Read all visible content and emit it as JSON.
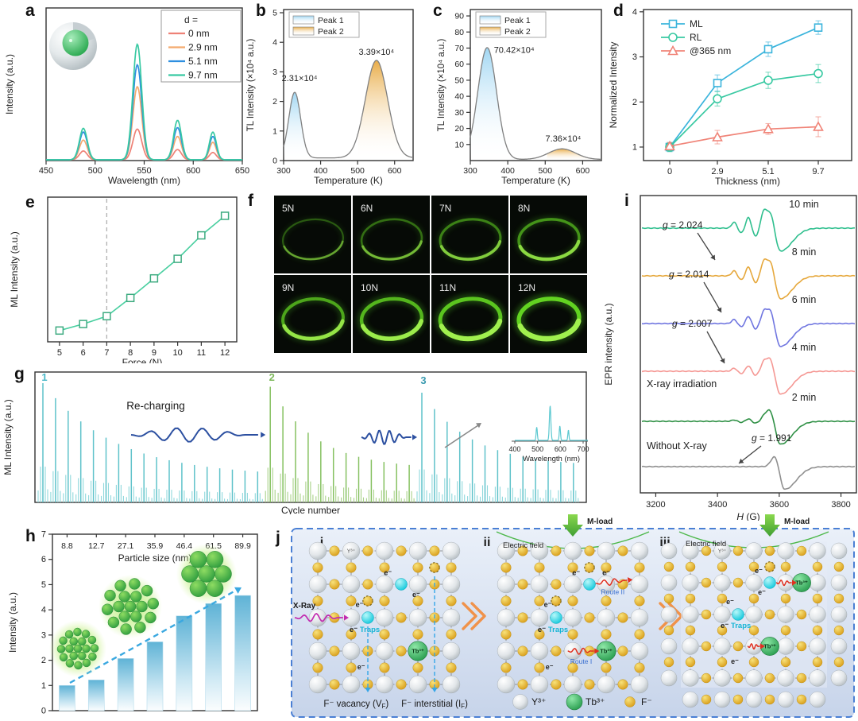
{
  "panels": {
    "a": "a",
    "b": "b",
    "c": "c",
    "d": "d",
    "e": "e",
    "f": "f",
    "g": "g",
    "h": "h",
    "i": "i",
    "j": "j"
  },
  "chart_data": [
    {
      "panel": "a",
      "type": "line",
      "xlabel": "Wavelength (nm)",
      "ylabel": "Intensity (a.u.)",
      "xlim": [
        450,
        650
      ],
      "xticks": [
        450,
        500,
        550,
        600,
        650
      ],
      "peak_centers_nm": [
        488,
        543,
        584,
        620
      ],
      "peak_sigmas_nm": [
        4,
        4.5,
        4,
        3.5
      ],
      "legend_title": "d =",
      "series": [
        {
          "name": "0 nm",
          "color": "#ee8176",
          "peak_heights": [
            0.06,
            0.21,
            0.07,
            0.05
          ]
        },
        {
          "name": "2.9 nm",
          "color": "#f4aa6e",
          "peak_heights": [
            0.135,
            0.5,
            0.16,
            0.12
          ]
        },
        {
          "name": "5.1 nm",
          "color": "#2e8fe0",
          "peak_heights": [
            0.19,
            0.65,
            0.22,
            0.16
          ]
        },
        {
          "name": "9.7 nm",
          "color": "#38c9a2",
          "peak_heights": [
            0.215,
            0.79,
            0.27,
            0.19
          ]
        }
      ]
    },
    {
      "panel": "b",
      "type": "area",
      "xlabel": "Temperature (K)",
      "ylabel": "TL Intensity (×10⁴ a.u.)",
      "xlim": [
        300,
        650
      ],
      "ylim": [
        0,
        5
      ],
      "xticks": [
        300,
        400,
        500,
        600
      ],
      "yticks": [
        0,
        1,
        2,
        3,
        4,
        5
      ],
      "baseline": 0.09,
      "legend": [
        "Peak 1",
        "Peak 2"
      ],
      "peaks": [
        {
          "name": "Peak 1",
          "center_K": 330,
          "sigma_K": 16,
          "amplitude": 2.22,
          "label": "2.31×10⁴",
          "fill": "#9bd4f2"
        },
        {
          "name": "Peak 2",
          "center_K": 551,
          "sigma_K": 30,
          "amplitude": 3.3,
          "label": "3.39×10⁴",
          "fill": "#e8a83e"
        }
      ]
    },
    {
      "panel": "c",
      "type": "area",
      "xlabel": "Temperature (K)",
      "ylabel": "TL Intensity (×10⁴ a.u.)",
      "xlim": [
        300,
        650
      ],
      "ylim": [
        0,
        92
      ],
      "xticks": [
        300,
        400,
        500,
        600
      ],
      "yticks": [
        10,
        20,
        30,
        40,
        50,
        60,
        70,
        80,
        90
      ],
      "baseline": 0.7,
      "legend": [
        "Peak 1",
        "Peak 2"
      ],
      "peaks": [
        {
          "name": "Peak 1",
          "center_K": 345,
          "sigma_K": 25,
          "amplitude": 69.6,
          "label": "70.42×10⁴",
          "fill": "#9bd4f2"
        },
        {
          "name": "Peak 2",
          "center_K": 545,
          "sigma_K": 36,
          "amplitude": 6.6,
          "label": "7.36×10⁴",
          "fill": "#e8a83e"
        }
      ]
    },
    {
      "panel": "d",
      "type": "line",
      "xlabel": "Thickness (nm)",
      "ylabel": "Normalized Intensity",
      "categories": [
        "0",
        "2.9",
        "5.1",
        "9.7"
      ],
      "ylim": [
        0.7,
        4.05
      ],
      "yticks": [
        1,
        2,
        3,
        4
      ],
      "series": [
        {
          "name": "ML",
          "color": "#3ab4dc",
          "marker": "square",
          "values": [
            1.0,
            2.42,
            3.17,
            3.65
          ],
          "errors": [
            0.1,
            0.18,
            0.16,
            0.15
          ]
        },
        {
          "name": "RL",
          "color": "#38c9a2",
          "marker": "circle",
          "values": [
            1.0,
            2.07,
            2.48,
            2.63
          ],
          "errors": [
            0.1,
            0.16,
            0.18,
            0.2
          ]
        },
        {
          "name": "@365 nm",
          "color": "#f08478",
          "marker": "triangle",
          "values": [
            1.02,
            1.22,
            1.4,
            1.45
          ],
          "errors": [
            0.08,
            0.15,
            0.12,
            0.22
          ]
        }
      ]
    },
    {
      "panel": "e",
      "type": "line",
      "xlabel": "Force (N)",
      "ylabel": "ML Intensity (a.u.)",
      "xticks": [
        5,
        6,
        7,
        8,
        9,
        10,
        11,
        12
      ],
      "x": [
        5,
        6,
        7,
        8,
        9,
        10,
        11,
        12
      ],
      "y_rel": [
        0.05,
        0.1,
        0.16,
        0.3,
        0.45,
        0.6,
        0.78,
        0.93
      ],
      "threshold_x": 7,
      "color": "#49cfa0"
    },
    {
      "panel": "f",
      "type": "photo-grid",
      "labels": [
        "5N",
        "6N",
        "7N",
        "8N",
        "9N",
        "10N",
        "11N",
        "12N"
      ]
    },
    {
      "panel": "g",
      "type": "spike-train",
      "xlabel": "Cycle number",
      "ylabel": "ML Intensity (a.u.)",
      "groups": [
        {
          "label": "1",
          "color": "#8fd8dc",
          "edge": "#5fc2ca",
          "n": 18,
          "start": 1.0,
          "end": 0.22
        },
        {
          "label": "2",
          "color": "#a9d289",
          "edge": "#86c161",
          "n": 12,
          "start": 0.97,
          "end": 0.28
        },
        {
          "label": "3",
          "color": "#8fd8dc",
          "edge": "#5fc2ca",
          "n": 13,
          "start": 0.92,
          "end": 0.3
        }
      ],
      "recharging_label": "Re-charging",
      "inset": {
        "xlabel": "Wavelength (nm)",
        "xticks": [
          400,
          500,
          600,
          700
        ],
        "color": "#5bc8d0",
        "peak_centers_nm": [
          490,
          545,
          585,
          620
        ],
        "peak_heights": [
          0.38,
          1.0,
          0.42,
          0.3
        ]
      }
    },
    {
      "panel": "h",
      "type": "bar",
      "ylabel": "Intensity (a.u.)",
      "top_axis_label": "Particle size (nm)",
      "categories": [
        "8.8",
        "12.7",
        "27.1",
        "35.9",
        "46.4",
        "61.5",
        "89.9"
      ],
      "values": [
        1.0,
        1.22,
        2.07,
        2.73,
        3.76,
        4.25,
        4.57
      ],
      "ylim": [
        0,
        7
      ],
      "yticks": [
        0,
        1,
        2,
        3,
        4,
        5,
        6,
        7
      ],
      "bar_color_top": "#5fb3d6",
      "arrow_color": "#3aa8e0"
    },
    {
      "panel": "i",
      "type": "line",
      "xlabel_italic": "H",
      "xlabel_rest": " (G)",
      "ylabel": "EPR intensity (a.u.)",
      "xlim": [
        3150,
        3850
      ],
      "xticks": [
        3200,
        3400,
        3600,
        3800
      ],
      "curves": [
        {
          "label": "10 min",
          "color": "#2fbf8e",
          "structure": 0.9
        },
        {
          "label": "8 min",
          "color": "#e6a83c",
          "structure": 0.75
        },
        {
          "label": "6 min",
          "color": "#7076e0",
          "structure": 0.6
        },
        {
          "label": "4 min",
          "color": "#f59894",
          "structure": 0.45
        },
        {
          "label": "2 min",
          "color": "#2f9045",
          "structure": 0.2
        },
        {
          "label": "Without X-ray",
          "color": "#8f8f8f",
          "structure": 0
        }
      ],
      "side_labels": {
        "irradiation": "X-ray irradiation",
        "without": "Without X-ray"
      },
      "g_annotations": [
        {
          "text": "g = 2.024",
          "curve": 1
        },
        {
          "text": "g = 2.014",
          "curve": 2
        },
        {
          "text": "g = 2.007",
          "curve": 3
        },
        {
          "text": "g = 1.991",
          "curve": 5
        }
      ]
    }
  ],
  "schematic": {
    "steps": [
      "i",
      "ii",
      "iii"
    ],
    "xray": "X-Ray",
    "electric_field": "Electric field",
    "m_load": "M-load",
    "route1": "Route I",
    "route2": "Route II",
    "electron": "e⁻",
    "traps_word": "Traps",
    "y_ion": "Y³⁺",
    "tb_ion": "Tb³⁺",
    "f_ion": "F⁻",
    "vacancy": {
      "pre": "F⁻ vacancy (V",
      "sub": "F",
      "post": ")"
    },
    "interstitial": {
      "pre": "F⁻ interstitial (I",
      "sub": "F",
      "post": ")"
    },
    "legend": [
      {
        "name": "Y³⁺",
        "kind": "gray"
      },
      {
        "name": "Tb³⁺",
        "kind": "green"
      },
      {
        "name": "F⁻",
        "kind": "yellow"
      }
    ]
  }
}
